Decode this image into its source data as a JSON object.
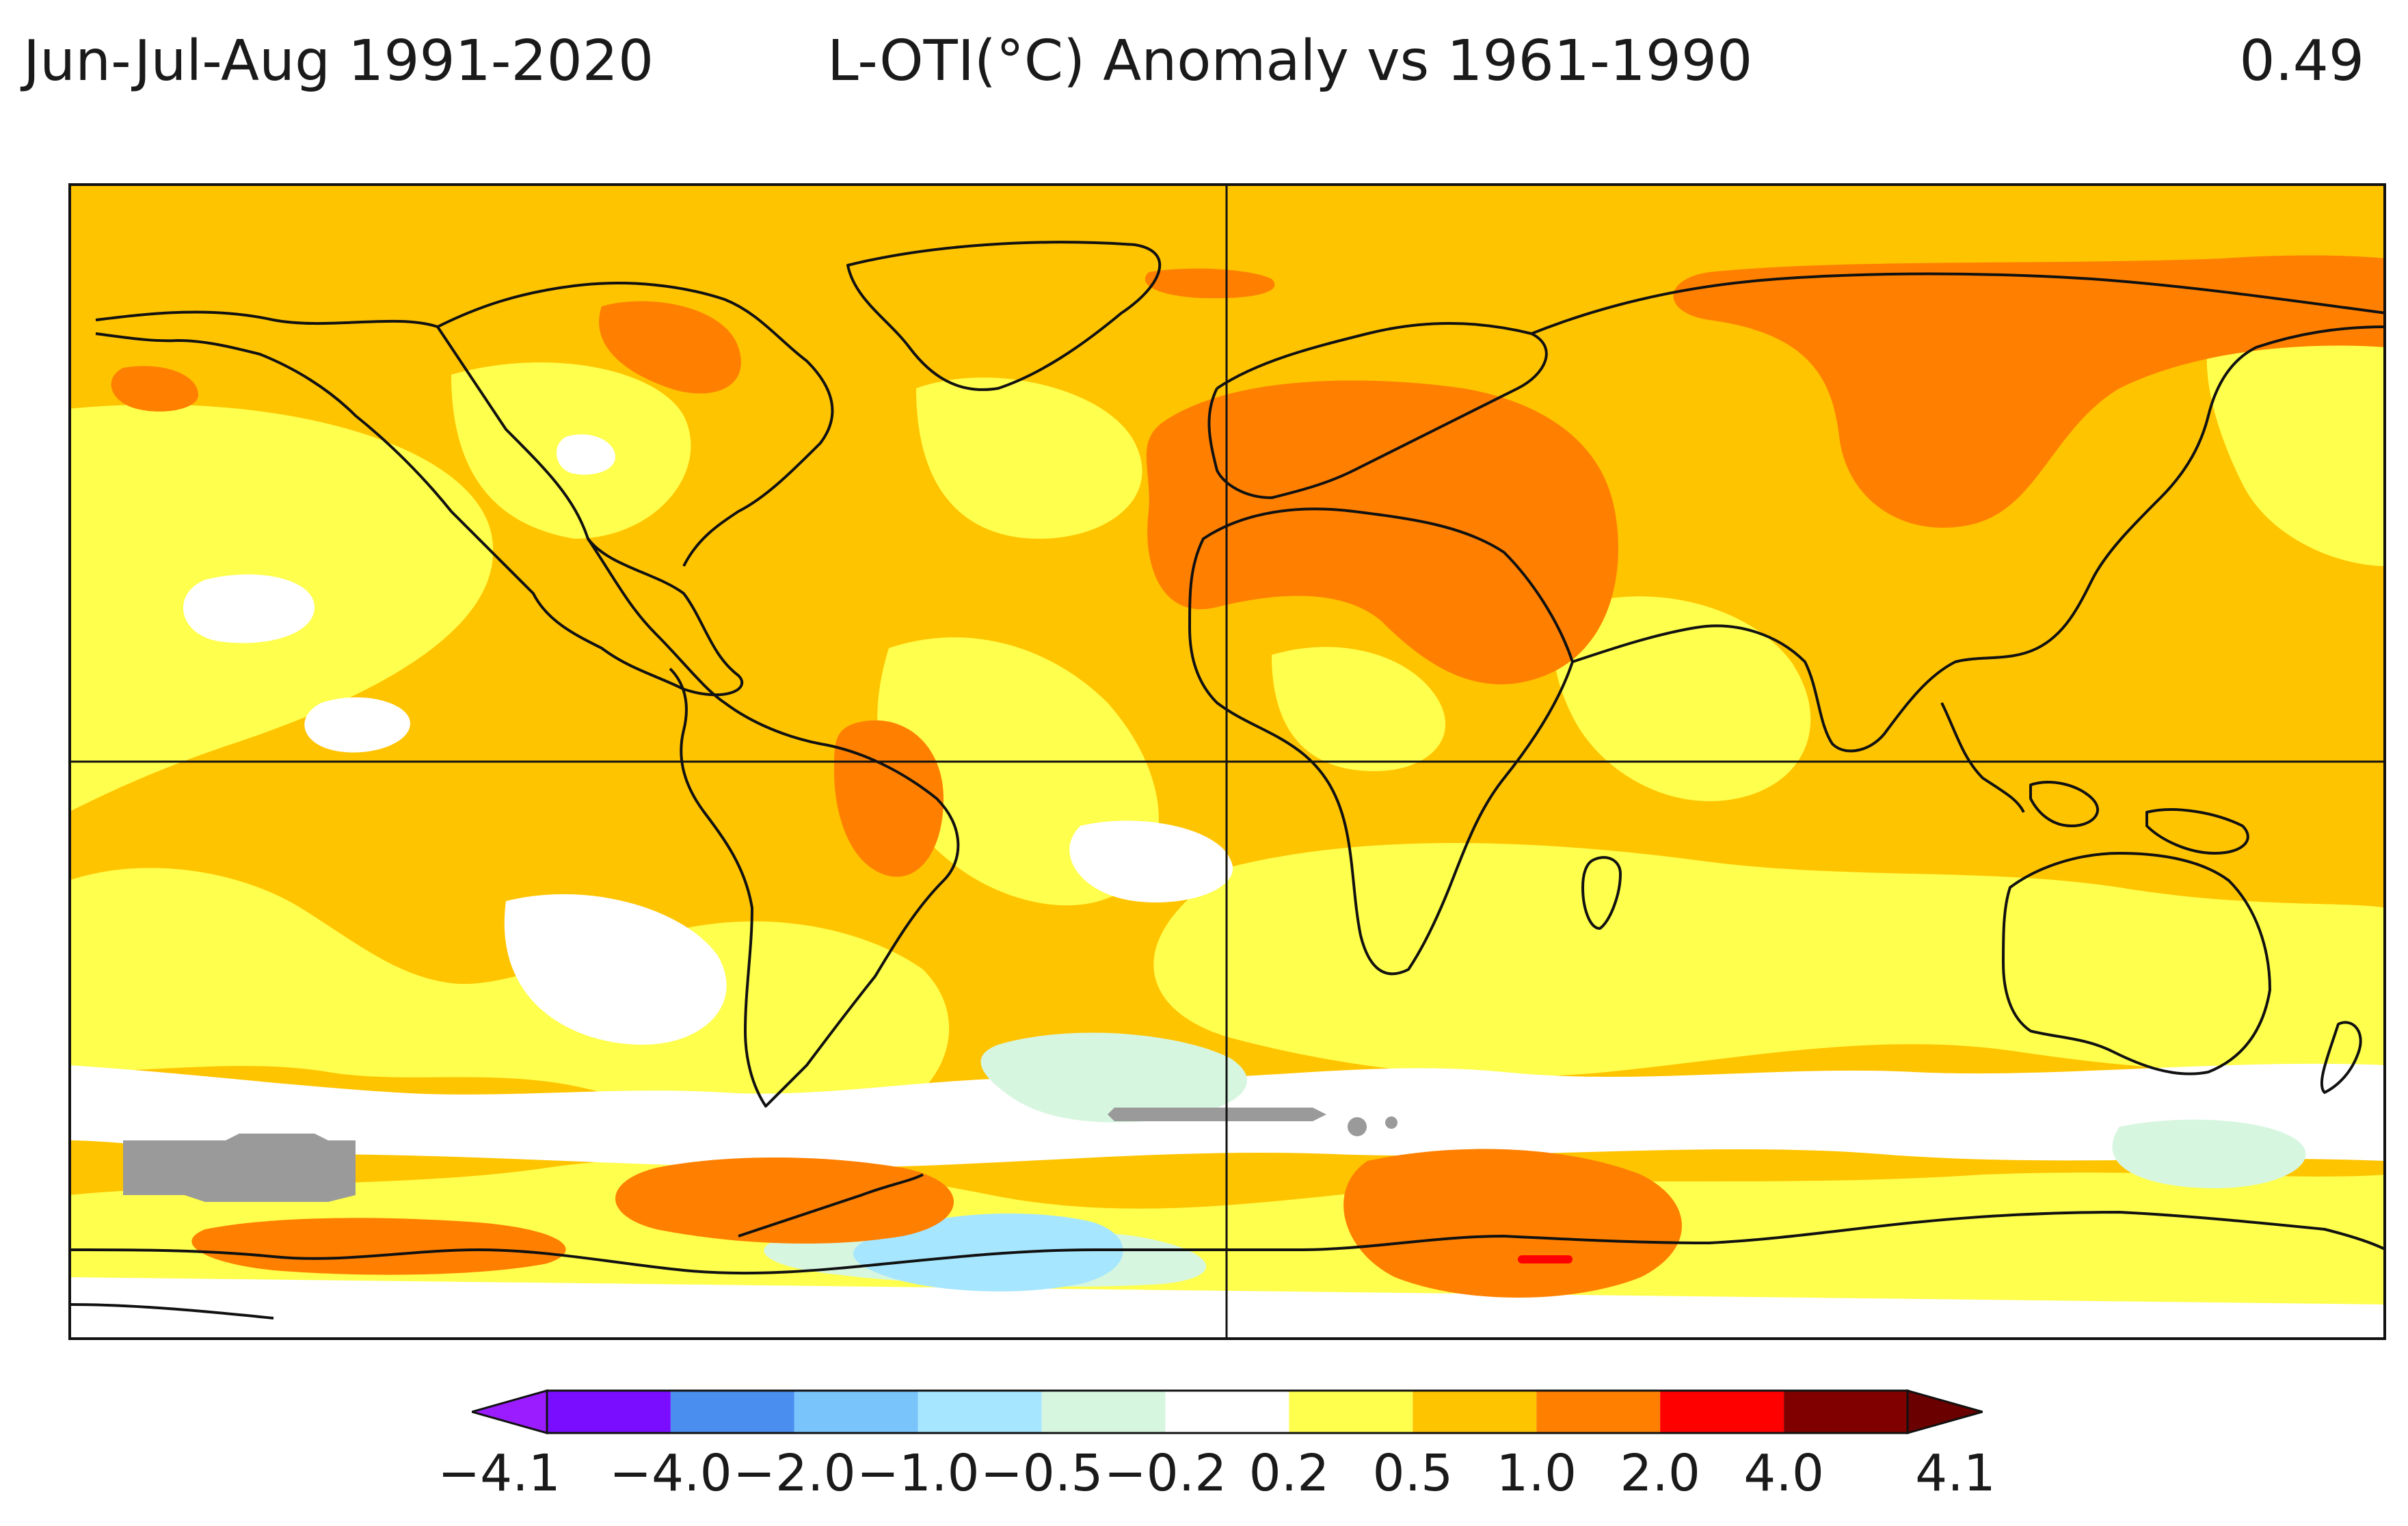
{
  "header": {
    "period": "Jun-Jul-Aug 1991-2020",
    "title": "L-OTI(°C) Anomaly vs 1961-1990",
    "global_mean": "0.49"
  },
  "colorbar": {
    "labels": [
      "−4.1",
      "−4.0",
      "−2.0",
      "−1.0",
      "−0.5",
      "−0.2",
      "0.2",
      "0.5",
      "1.0",
      "2.0",
      "4.0",
      "4.1"
    ],
    "bins": [
      {
        "range": "-4.1 to -4.0",
        "color": "#7a0dff"
      },
      {
        "range": "-4.0 to -2.0",
        "color": "#4a8ef0"
      },
      {
        "range": "-2.0 to -1.0",
        "color": "#78c4fb"
      },
      {
        "range": "-1.0 to -0.5",
        "color": "#a6e6ff"
      },
      {
        "range": "-0.5 to -0.2",
        "color": "#d7f6e0"
      },
      {
        "range": "-0.2 to 0.2",
        "color": "#ffffff"
      },
      {
        "range": "0.2 to 0.5",
        "color": "#ffff4d"
      },
      {
        "range": "0.5 to 1.0",
        "color": "#ffc400"
      },
      {
        "range": "1.0 to 2.0",
        "color": "#ff8000"
      },
      {
        "range": "2.0 to 4.0",
        "color": "#ff0000"
      },
      {
        "range": "4.0 to 4.1",
        "color": "#800000"
      }
    ],
    "under_color": "#9b1dff",
    "over_color": "#6b0000",
    "missing_color": "#9a9a9a"
  }
}
